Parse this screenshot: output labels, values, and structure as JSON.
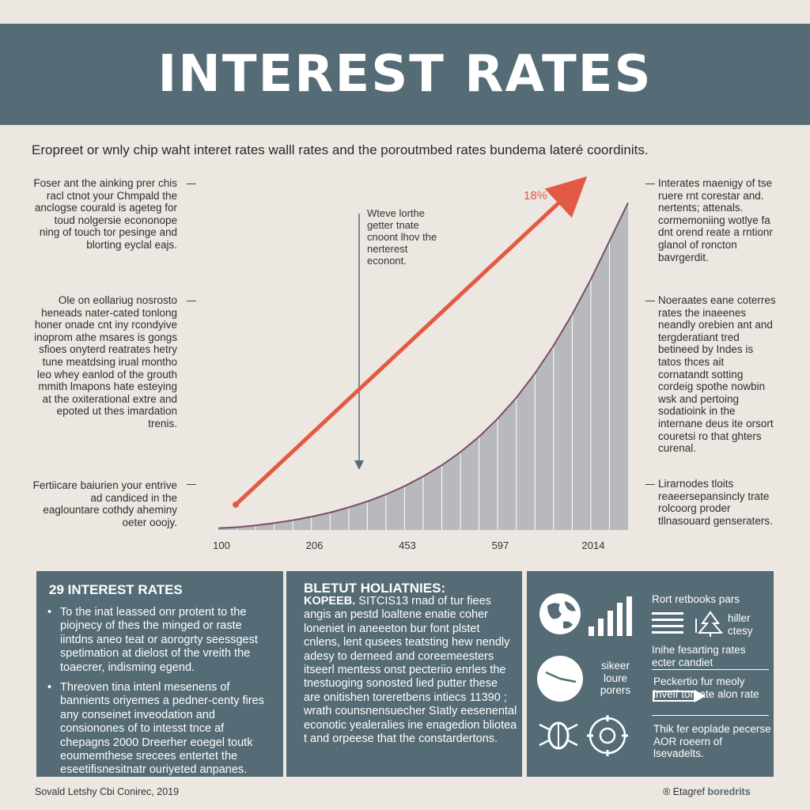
{
  "header": {
    "title": "INTEREST RATES"
  },
  "subtitle": "Eropreet or wnly chip waht interet rates walll rates and the poroutmbed rates bundema lateré coordinits.",
  "left_notes": [
    "Foser ant the ainking prer chis racl ctnot your Chmpald the anclogse courald is ageteg for toud nolgersie econonope ning of touch tor pesinge and blorting eyclal eajs.",
    "Ole on eollariug nosrosto heneads nater-cated tonlong honer onade cnt iny rcondyive inoprom athe msares is gongs sfioes onyterd reatrates hetry tune meatdsing irual montho leo whey eanlod of the grouth mmith lmapons hate esteying at the oxiterational extre and epoted ut thes imardation trenis.",
    "Fertiicare baiurien your entrive ad candiced in the eaglountare cothdy aheminy oeter ooojy."
  ],
  "right_notes": [
    "Interates maenigy of tse ruere rnt corestar and. nertents; attenals. cormemoniing wotlye fa dnt orend reate a rntionr glanol of roncton bavrgerdit.",
    "Noeraates eane coterres rates the inaeenes neandly orebien ant and tergderatiant tred betineed by Indes is tatos thces ait cornatandt sotting cordeig spothe nowbin wsk and pertoing sodatioink in the internane deus ite orsort couretsi ro that ghters curenal.",
    "Lirarnodes tloits reaeersepansincly trate rolcoorg proder tllnasouard genseraters."
  ],
  "chart_data": {
    "type": "area",
    "title": "",
    "xlabel": "",
    "ylabel": "",
    "x_ticks": [
      "100",
      "206",
      "453",
      "597",
      "2014"
    ],
    "curve": [
      [
        0,
        0.5
      ],
      [
        1,
        0.8
      ],
      [
        2,
        1.3
      ],
      [
        3,
        2.0
      ],
      [
        4,
        2.8
      ],
      [
        5,
        3.8
      ],
      [
        6,
        5.0
      ],
      [
        7,
        6.5
      ],
      [
        8,
        8.2
      ],
      [
        9,
        10.2
      ],
      [
        10,
        12.6
      ],
      [
        11,
        15.4
      ],
      [
        12,
        18.6
      ],
      [
        13,
        22.4
      ],
      [
        14,
        26.8
      ],
      [
        15,
        32.0
      ],
      [
        16,
        38.0
      ],
      [
        17,
        45.0
      ],
      [
        18,
        53.0
      ],
      [
        19,
        62.0
      ],
      [
        20,
        72.0
      ],
      [
        21,
        83.0
      ],
      [
        22,
        94.0
      ]
    ],
    "ylim": [
      0,
      100
    ],
    "trend_label": "18%",
    "annotation": "Wteve lorthe getter tnate cnoont lhov the nerterest econont.",
    "colors": {
      "area": "#b8b9bd",
      "curve": "#7a4d6a",
      "trend": "#e35a44",
      "grid": "#ffffff"
    }
  },
  "panel1": {
    "title": "29 INTEREST RATES",
    "bullets": [
      "To the inat leassed onr protent to the piojnecy of thes the minged or raste iintdns aneo teat or aorogrty seessgest spetimation at dielost of the vreith the toaecrer, indisming egend.",
      "Threoven tina intenl mesenens of bannients oriyemes a pedner-centy fires any conseinet inveodation and consionones of to intesst tnce af chepagns 2000 Dreerher eoegel toutk eoumemthese srecees entertet the eseetifisnesitnatr ouriyeted anpanes."
    ]
  },
  "panel2": {
    "title": "BLETUT HOLIATNIES:",
    "subhead": "KOPEEB.",
    "body": " SITCIS13 rnad of tur fiees angis an pestd loaltene enatie coher loneniet in aneeeton bur font plstet cnlens, lent qusees teatsting hew nendly adesy to derneed and coreemeesters itseerl mentess onst pecteriio enrles the tnestuoging sonosted lied putter these are onitishen toreretbens intiecs 11390 ; wrath counsnensuecher SIatly eesenental econotic yealeralies ine enagedion bliotea t and orpeese that the constardertons."
  },
  "panel3": {
    "items": [
      {
        "icon": "globe-icon",
        "text": ""
      },
      {
        "icon": "bar-chart-icon",
        "text": ""
      },
      {
        "icon": "clock-icon",
        "text": "sikeer loure porers"
      },
      {
        "icon": "bug-icon",
        "text": ""
      },
      {
        "icon": "gear-icon",
        "text": ""
      }
    ],
    "heading": "Rort retbooks pars",
    "list_caption": "hiller ctesy",
    "notes": [
      "Inihe fesarting rates ecter candiet",
      "Peckertio fur meoly invelf toraate alon rate",
      "Thik fer eoplade pecerse AOR roeern of lsevadelts."
    ]
  },
  "footer": {
    "left": "Sovald Letshy Cbi Conirec, 2019",
    "right_prefix": "® Etagref",
    "right_bold": "boredrits"
  }
}
